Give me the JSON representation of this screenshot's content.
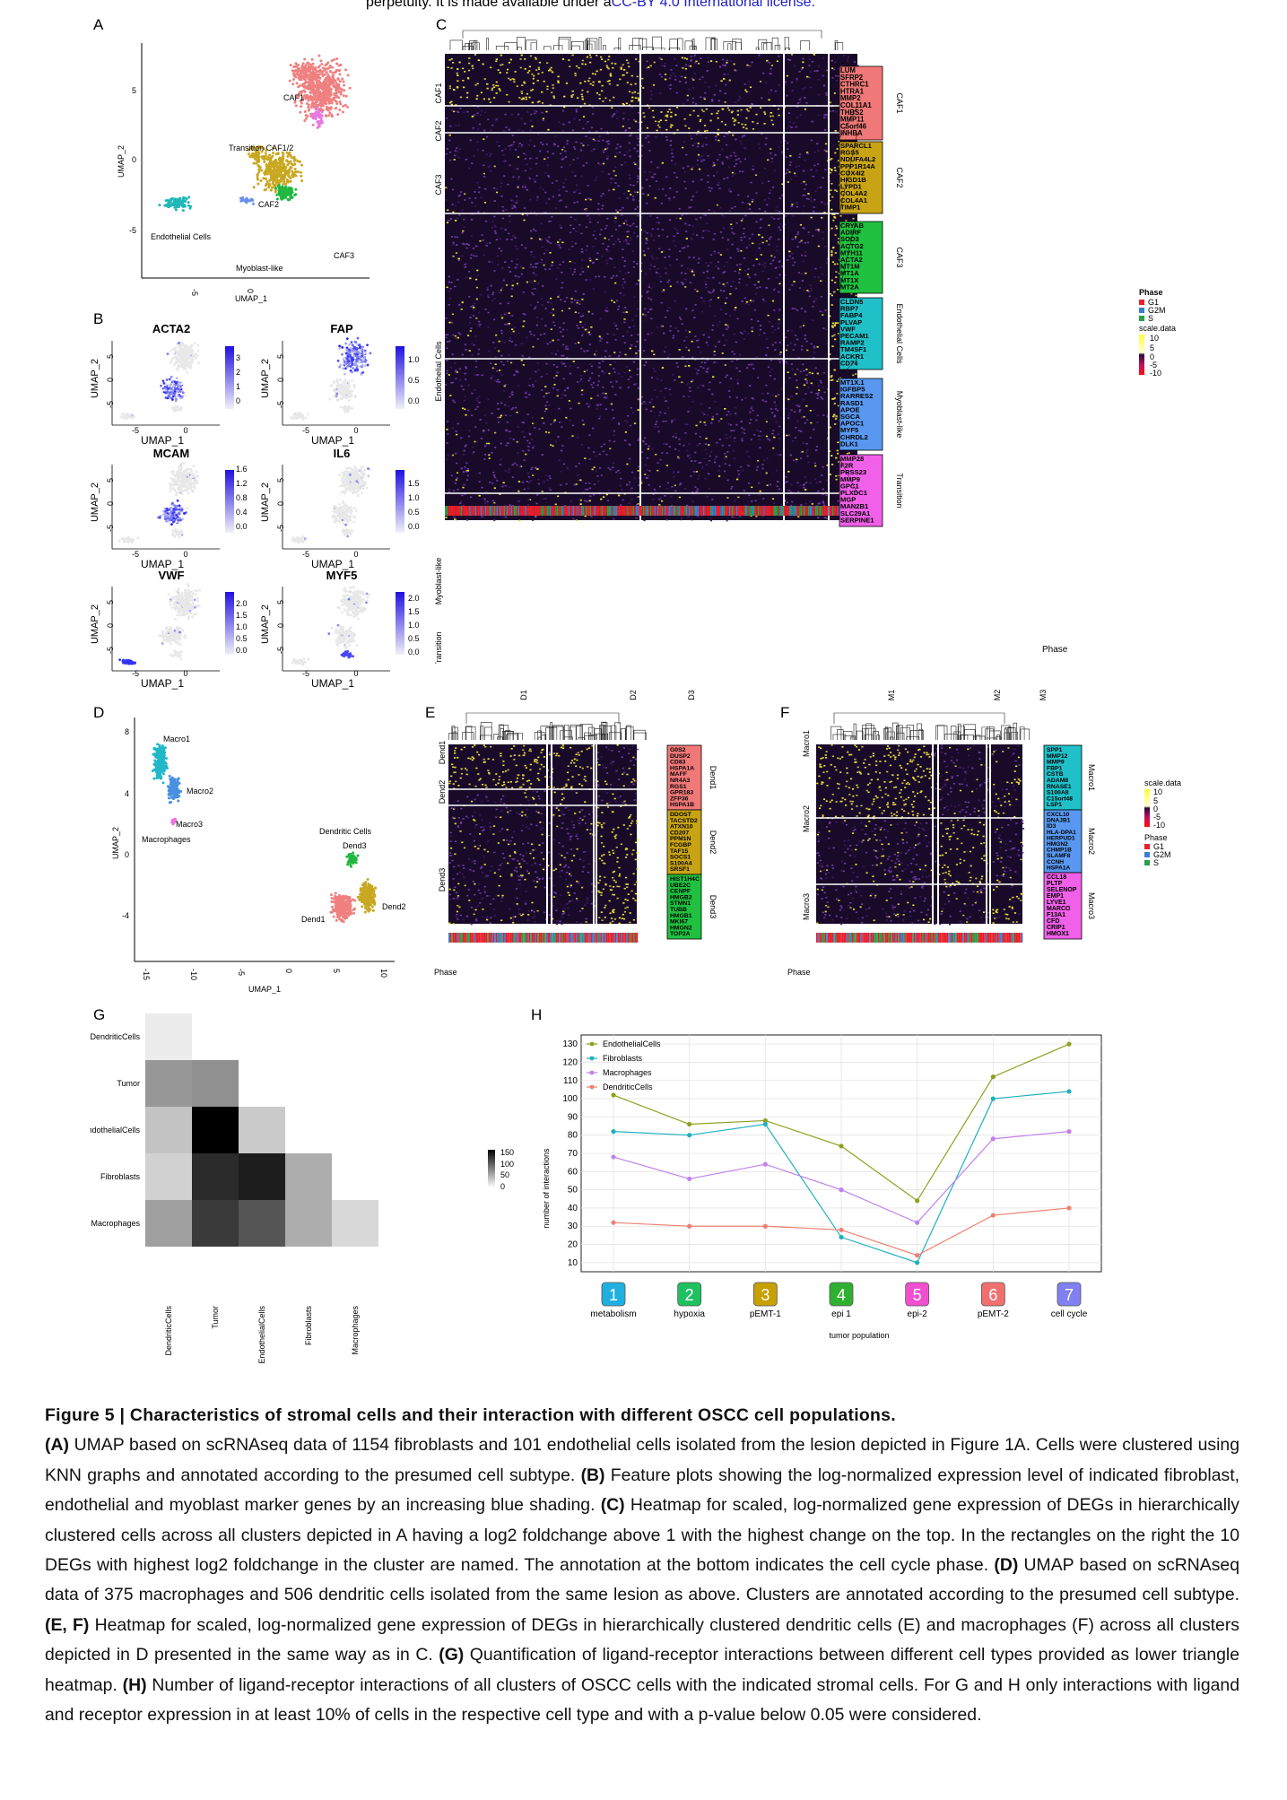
{
  "preprint_note": {
    "text": "perpetuity. It is made available under a",
    "license": "CC-BY 4.0 International license."
  },
  "panels": {
    "A": "A",
    "B": "B",
    "C": "C",
    "D": "D",
    "E": "E",
    "F": "F",
    "G": "G",
    "H": "H"
  },
  "panel_a": {
    "xlabel": "UMAP_1",
    "ylabel": "UMAP_2",
    "xticks": [
      "-5",
      "0"
    ],
    "yticks": [
      "5",
      "0",
      "-5"
    ],
    "clusters": [
      {
        "label": "CAF1",
        "color": "#f08080"
      },
      {
        "label": "Transition CAF1/2",
        "color": "#e878e0"
      },
      {
        "label": "CAF2",
        "color": "#c8a820"
      },
      {
        "label": "CAF3",
        "color": "#20b840"
      },
      {
        "label": "Endothelial Cells",
        "color": "#20b8b8"
      },
      {
        "label": "Myoblast-like",
        "color": "#6890e8"
      }
    ]
  },
  "panel_b": {
    "xlabel": "UMAP_1",
    "ylabel": "UMAP_2",
    "xticks": [
      "-5",
      "0"
    ],
    "yticks": [
      "5",
      "0",
      "-5"
    ],
    "plots": [
      {
        "gene": "ACTA2",
        "scale": [
          "3",
          "2",
          "1",
          "0"
        ]
      },
      {
        "gene": "FAP",
        "scale": [
          "1.0",
          "0.5",
          "0.0"
        ]
      },
      {
        "gene": "MCAM",
        "scale": [
          "1.6",
          "1.2",
          "0.8",
          "0.4",
          "0.0"
        ]
      },
      {
        "gene": "IL6",
        "scale": [
          "1.5",
          "1.0",
          "0.5",
          "0.0"
        ]
      },
      {
        "gene": "VWF",
        "scale": [
          "2.0",
          "1.5",
          "1.0",
          "0.5",
          "0.0"
        ]
      },
      {
        "gene": "MYF5",
        "scale": [
          "2.0",
          "1.5",
          "1.0",
          "0.5",
          "0.0"
        ]
      }
    ]
  },
  "panel_c": {
    "row_groups": [
      "CAF1",
      "CAF2",
      "CAF3",
      "Endothelial Cells",
      "Myoblast-like",
      "Transition"
    ],
    "phase_label": "Phase",
    "gene_boxes": [
      {
        "name": "CAF1",
        "color": "#f07878",
        "genes": [
          "LUM",
          "SFRP2",
          "CTHRC1",
          "HTRA1",
          "MMP2",
          "COL11A1",
          "THBS2",
          "MMP11",
          "C5orf46",
          "INHBA"
        ]
      },
      {
        "name": "CAF2",
        "color": "#c8a414",
        "genes": [
          "SPARCL1",
          "RGS5",
          "NDUFA4L2",
          "PPP1R14A",
          "COX4I2",
          "HIGD1B",
          "LYPD1",
          "COL4A2",
          "COL4A1",
          "TIMP1"
        ]
      },
      {
        "name": "CAF3",
        "color": "#20c040",
        "genes": [
          "CRYAB",
          "ADIRF",
          "SOD3",
          "ACTG2",
          "MYH11",
          "ACTA2",
          "MT1M",
          "MT1A",
          "MT1X",
          "MT2A"
        ]
      },
      {
        "name": "Endothelial Cells",
        "color": "#20c0c8",
        "genes": [
          "CLDN5",
          "RBP7",
          "FABP4",
          "PLVAP",
          "VWF",
          "PECAM1",
          "RAMP2",
          "TM4SF1",
          "ACKR1",
          "CD74"
        ]
      },
      {
        "name": "Myoblast-like",
        "color": "#5898f0",
        "genes": [
          "MT1X.1",
          "IGFBP5",
          "RARRES2",
          "RASD1",
          "APOE",
          "SGCA",
          "APOC1",
          "MYF5",
          "CHRDL2",
          "DLK1"
        ]
      },
      {
        "name": "Transition",
        "color": "#f060e8",
        "genes": [
          "MMP28",
          "F2R",
          "PRSS23",
          "MMP9",
          "GPC1",
          "PLXDC1",
          "MGP",
          "MAN2B1",
          "SLC29A1",
          "SERPINE1"
        ]
      }
    ],
    "legend": {
      "phase_title": "Phase",
      "phases": [
        "G1",
        "G2M",
        "S"
      ],
      "scale_title": "scale.data",
      "scale_ticks": [
        "10",
        "5",
        "0",
        "-5",
        "-10"
      ]
    }
  },
  "panel_d": {
    "xlabel": "UMAP_1",
    "ylabel": "UMAP_2",
    "xticks": [
      "-15",
      "-10",
      "-5",
      "0",
      "5",
      "10"
    ],
    "yticks": [
      "8",
      "4",
      "0",
      "-4"
    ],
    "clusters": [
      {
        "label": "Macro1",
        "color": "#20b8c8"
      },
      {
        "label": "Macro2",
        "color": "#4890e0"
      },
      {
        "label": "Macro3",
        "color": "#f070e0"
      },
      {
        "label": "Macrophages",
        "color": "#000000"
      },
      {
        "label": "Dendritic Cells",
        "color": "#000000"
      },
      {
        "label": "Dend3",
        "color": "#20b840"
      },
      {
        "label": "Dend2",
        "color": "#c8a820"
      },
      {
        "label": "Dend1",
        "color": "#f08080"
      }
    ]
  },
  "panel_e": {
    "col_groups": [
      "D1",
      "D2",
      "D3"
    ],
    "row_groups": [
      "Dend1",
      "Dend2",
      "Dend3"
    ],
    "phase_label": "Phase",
    "gene_boxes": [
      {
        "name": "Dend1",
        "color": "#f07878",
        "genes": [
          "G0S2",
          "DUSP2",
          "CD83",
          "HSPA1A",
          "MAFF",
          "NR4A3",
          "RGS1",
          "GPR183",
          "ZFP36",
          "HSPA1B"
        ]
      },
      {
        "name": "Dend2",
        "color": "#c8a414",
        "genes": [
          "DDOST",
          "TACSTD2",
          "ATXN10",
          "CD207",
          "PPM1N",
          "FCGBP",
          "TAF15",
          "SOCS1",
          "S100A4",
          "SRSF1"
        ]
      },
      {
        "name": "Dend3",
        "color": "#20c040",
        "genes": [
          "HIST1H4C",
          "UBE2C",
          "CENPF",
          "HMGB2",
          "STMN1",
          "TUBB",
          "HMGB1",
          "MKI67",
          "HMGN2",
          "TOP2A"
        ]
      }
    ]
  },
  "panel_f": {
    "col_groups": [
      "M1",
      "M2",
      "M3"
    ],
    "row_groups": [
      "Macro1",
      "Macro2",
      "Macro3"
    ],
    "phase_label": "Phase",
    "gene_boxes": [
      {
        "name": "Macro1",
        "color": "#20c0c8",
        "genes": [
          "SPP1",
          "MMP12",
          "MMP9",
          "FBP1",
          "CSTB",
          "ADAM8",
          "RNASE1",
          "S100A8",
          "C15orf48",
          "LSP1"
        ]
      },
      {
        "name": "Macro2",
        "color": "#5898f0",
        "genes": [
          "CXCL10",
          "DNAJB1",
          "ID3",
          "HLA-DPA1",
          "HERPUD1",
          "HMGN2",
          "CHMP1B",
          "SLAMF8",
          "CCNH",
          "HSPA1A"
        ]
      },
      {
        "name": "Macro3",
        "color": "#f060e8",
        "genes": [
          "CCL18",
          "PLTP",
          "SELENOP",
          "EMP1",
          "LYVE1",
          "MARCO",
          "F13A1",
          "CFD",
          "CRIP1",
          "HMOX1"
        ]
      }
    ],
    "legend": {
      "scale_title": "scale.data",
      "scale_ticks": [
        "10",
        "5",
        "0",
        "-5",
        "-10"
      ],
      "phase_title": "Phase",
      "phases": [
        "G1",
        "G2M",
        "S"
      ]
    }
  },
  "panel_g": {
    "rows": [
      "DendriticCells",
      "Tumor",
      "EndothelialCells",
      "Fibroblasts",
      "Macrophages"
    ],
    "cols": [
      "DendriticCells",
      "Tumor",
      "EndothelialCells",
      "Fibroblasts",
      "Macrophages"
    ],
    "values": [
      [
        6
      ],
      [
        65,
        70
      ],
      [
        35,
        170,
        30
      ],
      [
        25,
        140,
        150,
        50
      ],
      [
        60,
        130,
        110,
        50,
        20
      ]
    ],
    "scale_ticks": [
      "150",
      "100",
      "50",
      "0"
    ],
    "max": 170
  },
  "chart_data": {
    "type": "line",
    "title": "",
    "xlabel": "tumor population",
    "ylabel": "number of interactions",
    "ylim": [
      5,
      135
    ],
    "yticks": [
      10,
      20,
      30,
      40,
      50,
      60,
      70,
      80,
      90,
      100,
      110,
      120,
      130
    ],
    "categories": [
      {
        "num": "1",
        "label": "metabolism",
        "color": "#20b0e0"
      },
      {
        "num": "2",
        "label": "hypoxia",
        "color": "#20c060"
      },
      {
        "num": "3",
        "label": "pEMT-1",
        "color": "#c8a000"
      },
      {
        "num": "4",
        "label": "epi 1",
        "color": "#30b030"
      },
      {
        "num": "5",
        "label": "epi-2",
        "color": "#f050d0"
      },
      {
        "num": "6",
        "label": "pEMT-2",
        "color": "#f07070"
      },
      {
        "num": "7",
        "label": "cell cycle",
        "color": "#8080f0"
      }
    ],
    "series": [
      {
        "name": "EndothelialCells",
        "color": "#8fa01e",
        "values": [
          102,
          86,
          88,
          74,
          44,
          112,
          130
        ]
      },
      {
        "name": "Fibroblasts",
        "color": "#20b0c0",
        "values": [
          82,
          80,
          86,
          24,
          10,
          100,
          104
        ]
      },
      {
        "name": "Macrophages",
        "color": "#c080f0",
        "values": [
          68,
          56,
          64,
          50,
          32,
          78,
          82
        ]
      },
      {
        "name": "DendriticCells",
        "color": "#f08070",
        "values": [
          32,
          30,
          30,
          28,
          14,
          36,
          40
        ]
      }
    ]
  },
  "caption": {
    "title": "Figure 5 | Characteristics of stromal cells and their interaction with different OSCC cell populations.",
    "parts": [
      {
        "tag": "(A)",
        "text": " UMAP based on scRNAseq data of 1154 fibroblasts and 101 endothelial cells isolated from the lesion depicted in Figure 1A. Cells were clustered using KNN graphs and annotated according to the presumed cell subtype. "
      },
      {
        "tag": "(B)",
        "text": " Feature plots showing the log-normalized expression level of indicated fibroblast, endothelial and myoblast marker genes by an increasing blue shading. "
      },
      {
        "tag": "(C)",
        "text": " Heatmap for scaled, log-normalized gene expression of DEGs in hierarchically clustered cells across all clusters depicted in A having a log2 foldchange above 1 with the highest change on the top. In the rectangles on the right the 10 DEGs with highest log2 foldchange in the cluster are named. The annotation at the bottom indicates the cell cycle phase. "
      },
      {
        "tag": "(D)",
        "text": " UMAP based on scRNAseq data of 375 macrophages and 506 dendritic cells isolated from the same lesion as above. Clusters are annotated according to the presumed cell subtype. "
      },
      {
        "tag": "(E, F)",
        "text": " Heatmap for scaled, log-normalized gene expression of DEGs in hierarchically clustered dendritic cells (E) and macrophages (F) across all clusters depicted in D presented in the same way as in C. "
      },
      {
        "tag": "(G)",
        "text": " Quantification of ligand-receptor interactions between different cell types provided as lower triangle heatmap. "
      },
      {
        "tag": "(H)",
        "text": " Number of ligand-receptor interactions of all clusters of OSCC cells with the indicated stromal cells. For G and H only interactions with ligand and receptor expression in at least 10% of cells in the respective cell type and with a p-value below 0.05 were considered."
      }
    ]
  }
}
